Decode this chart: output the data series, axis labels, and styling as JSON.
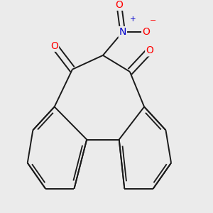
{
  "background_color": "#ebebeb",
  "bond_color": "#1a1a1a",
  "bond_width": 1.4,
  "atom_colors": {
    "O": "#ff0000",
    "N": "#0000cd",
    "C": "#1a1a1a"
  },
  "figsize": [
    3.0,
    3.0
  ],
  "dpi": 100
}
